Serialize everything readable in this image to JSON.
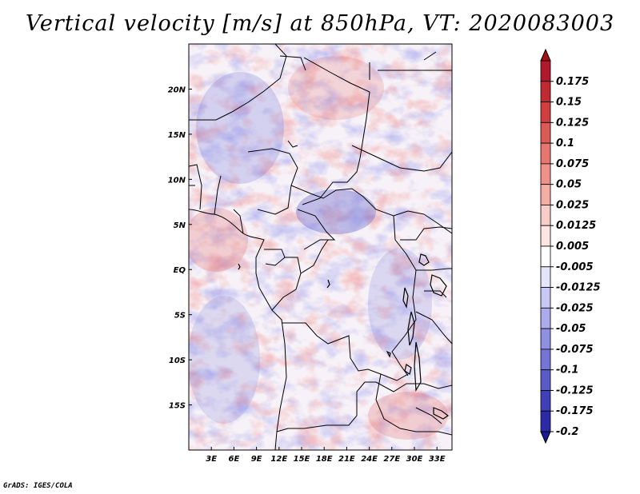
{
  "title": "Vertical velocity [m/s] at 850hPa, VT: 2020083003",
  "credit": "GrADS: IGES/COLA",
  "map": {
    "lon_range": [
      0,
      35
    ],
    "lat_range": [
      -20,
      25
    ],
    "x_ticks": [
      {
        "value": 3,
        "label": "3E"
      },
      {
        "value": 6,
        "label": "6E"
      },
      {
        "value": 9,
        "label": "9E"
      },
      {
        "value": 12,
        "label": "12E"
      },
      {
        "value": 15,
        "label": "15E"
      },
      {
        "value": 18,
        "label": "18E"
      },
      {
        "value": 21,
        "label": "21E"
      },
      {
        "value": 24,
        "label": "24E"
      },
      {
        "value": 27,
        "label": "27E"
      },
      {
        "value": 30,
        "label": "30E"
      },
      {
        "value": 33,
        "label": "33E"
      }
    ],
    "y_ticks": [
      {
        "value": 20,
        "label": "20N"
      },
      {
        "value": 15,
        "label": "15N"
      },
      {
        "value": 10,
        "label": "10N"
      },
      {
        "value": 5,
        "label": "5N"
      },
      {
        "value": 0,
        "label": "EQ"
      },
      {
        "value": -5,
        "label": "5S"
      },
      {
        "value": -10,
        "label": "10S"
      },
      {
        "value": -15,
        "label": "15S"
      }
    ]
  },
  "colorbar": {
    "levels": [
      {
        "label": "0.175",
        "color": "#b2182b"
      },
      {
        "label": "0.15",
        "color": "#c02a33"
      },
      {
        "label": "0.125",
        "color": "#cf3f3f"
      },
      {
        "label": "0.1",
        "color": "#dc5a55"
      },
      {
        "label": "0.075",
        "color": "#e6766f"
      },
      {
        "label": "0.05",
        "color": "#ee9289"
      },
      {
        "label": "0.025",
        "color": "#f4aea6"
      },
      {
        "label": "0.0125",
        "color": "#f9cdc7"
      },
      {
        "label": "0.005",
        "color": "#fde6e2"
      },
      {
        "label": "-0.005",
        "color": "#ffffff"
      },
      {
        "label": "-0.0125",
        "color": "#e4e4fa"
      },
      {
        "label": "-0.025",
        "color": "#c8c8f4"
      },
      {
        "label": "-0.05",
        "color": "#acacec"
      },
      {
        "label": "-0.075",
        "color": "#9090e2"
      },
      {
        "label": "-0.1",
        "color": "#7474d6"
      },
      {
        "label": "-0.125",
        "color": "#5a5ac8"
      },
      {
        "label": "-0.175",
        "color": "#4040b8"
      },
      {
        "label": "-0.2",
        "color": "#2a2aa6"
      }
    ],
    "top_color": "#a50f15",
    "bottom_color": "#1a1a96"
  }
}
